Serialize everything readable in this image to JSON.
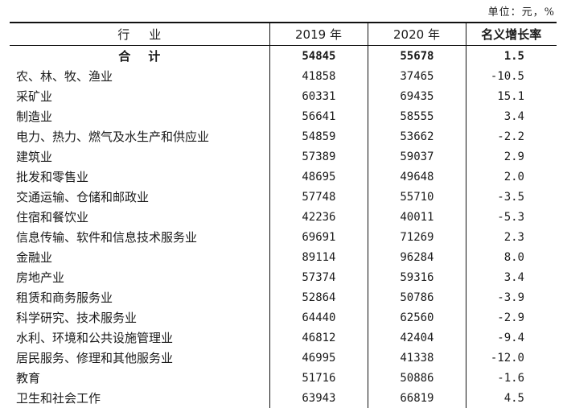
{
  "unit_note": "单位：元，%",
  "header": {
    "industry": "行业",
    "y2019": "2019 年",
    "y2020": "2020 年",
    "rate": "名义增长率"
  },
  "total": {
    "industry": "合计",
    "y2019": "54845",
    "y2020": "55678",
    "rate": "1.5"
  },
  "rows": [
    {
      "industry": "农、林、牧、渔业",
      "y2019": "41858",
      "y2020": "37465",
      "rate": "-10.5"
    },
    {
      "industry": "采矿业",
      "y2019": "60331",
      "y2020": "69435",
      "rate": "15.1"
    },
    {
      "industry": "制造业",
      "y2019": "56641",
      "y2020": "58555",
      "rate": "3.4"
    },
    {
      "industry": "电力、热力、燃气及水生产和供应业",
      "y2019": "54859",
      "y2020": "53662",
      "rate": "-2.2"
    },
    {
      "industry": "建筑业",
      "y2019": "57389",
      "y2020": "59037",
      "rate": "2.9"
    },
    {
      "industry": "批发和零售业",
      "y2019": "48695",
      "y2020": "49648",
      "rate": "2.0"
    },
    {
      "industry": "交通运输、仓储和邮政业",
      "y2019": "57748",
      "y2020": "55710",
      "rate": "-3.5"
    },
    {
      "industry": "住宿和餐饮业",
      "y2019": "42236",
      "y2020": "40011",
      "rate": "-5.3"
    },
    {
      "industry": "信息传输、软件和信息技术服务业",
      "y2019": "69691",
      "y2020": "71269",
      "rate": "2.3"
    },
    {
      "industry": "金融业",
      "y2019": "89114",
      "y2020": "96284",
      "rate": "8.0"
    },
    {
      "industry": "房地产业",
      "y2019": "57374",
      "y2020": "59316",
      "rate": "3.4"
    },
    {
      "industry": "租赁和商务服务业",
      "y2019": "52864",
      "y2020": "50786",
      "rate": "-3.9"
    },
    {
      "industry": "科学研究、技术服务业",
      "y2019": "64440",
      "y2020": "62560",
      "rate": "-2.9"
    },
    {
      "industry": "水利、环境和公共设施管理业",
      "y2019": "46812",
      "y2020": "42404",
      "rate": "-9.4"
    },
    {
      "industry": "居民服务、修理和其他服务业",
      "y2019": "46995",
      "y2020": "41338",
      "rate": "-12.0"
    },
    {
      "industry": "教育",
      "y2019": "51716",
      "y2020": "50886",
      "rate": "-1.6"
    },
    {
      "industry": "卫生和社会工作",
      "y2019": "63943",
      "y2020": "66819",
      "rate": "4.5"
    }
  ]
}
